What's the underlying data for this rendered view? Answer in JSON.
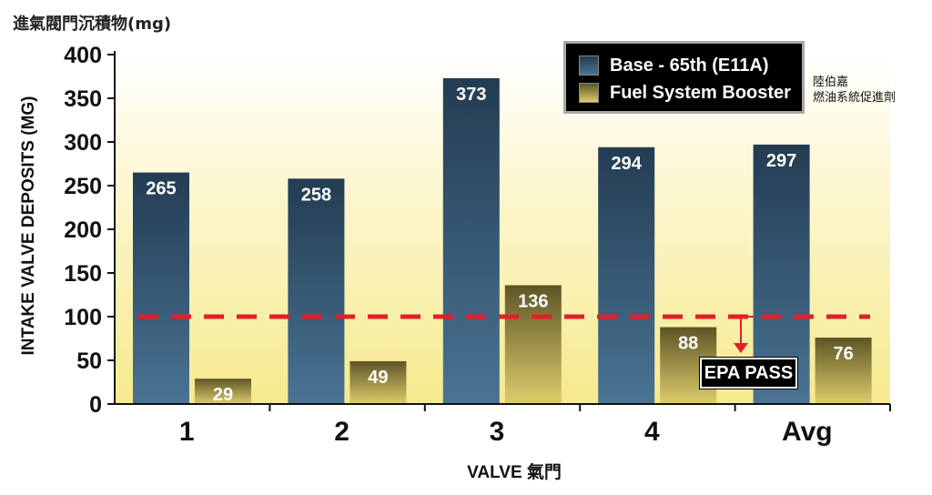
{
  "header": {
    "title": "進氣閥門沉積物(mg)"
  },
  "legend": {
    "items": [
      {
        "label": "Base - 65th (E11A)",
        "color": "#3a5a78"
      },
      {
        "label": "Fuel System Booster",
        "color": "#8a7d3a"
      }
    ]
  },
  "side_note": {
    "line1": "陸伯嘉",
    "line2": "燃油系統促進劑"
  },
  "epa": {
    "label": "EPA PASS",
    "threshold": 100,
    "line_color": "#e0202a"
  },
  "chart_data": {
    "type": "bar",
    "title": "進氣閥門沉積物(mg)",
    "xlabel": "VALVE 氣門",
    "ylabel": "INTAKE VALVE DEPOSITS (MG)",
    "categories": [
      "1",
      "2",
      "3",
      "4",
      "Avg"
    ],
    "series": [
      {
        "name": "Base - 65th (E11A)",
        "values": [
          265,
          258,
          373,
          294,
          297
        ]
      },
      {
        "name": "Fuel System Booster",
        "values": [
          29,
          49,
          136,
          88,
          76
        ]
      }
    ],
    "ylim": [
      0,
      400
    ],
    "yticks": [
      0,
      50,
      100,
      150,
      200,
      250,
      300,
      350,
      400
    ],
    "grid": false,
    "legend_position": "top-right",
    "background": "gradient yellow"
  }
}
